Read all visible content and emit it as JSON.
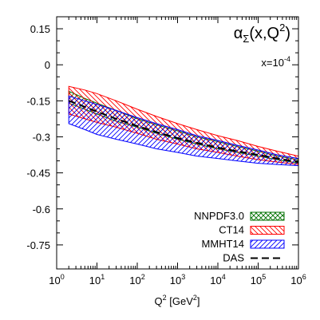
{
  "chart_data": {
    "type": "area",
    "title": "",
    "annotations": {
      "function_symbol": "α",
      "function_subscript": "Σ",
      "function_args": "(x,Q",
      "function_args_sup": "2",
      "function_args_close": ")",
      "x_value_prefix": "x=10",
      "x_value_exp": "-4"
    },
    "xlabel": {
      "prefix": "Q",
      "sup": "2",
      "suffix": " [GeV",
      "sup2": "2",
      "close": "]"
    },
    "ylabel": "",
    "xscale": "log",
    "xlim": [
      1,
      1000000
    ],
    "ylim": [
      -0.85,
      0.2
    ],
    "x_ticks": [
      {
        "base": "10",
        "exp": "0",
        "value": 1
      },
      {
        "base": "10",
        "exp": "1",
        "value": 10
      },
      {
        "base": "10",
        "exp": "2",
        "value": 100
      },
      {
        "base": "10",
        "exp": "3",
        "value": 1000
      },
      {
        "base": "10",
        "exp": "4",
        "value": 10000
      },
      {
        "base": "10",
        "exp": "5",
        "value": 100000
      },
      {
        "base": "10",
        "exp": "6",
        "value": 1000000
      }
    ],
    "y_ticks": [
      {
        "label": "0.15",
        "value": 0.15
      },
      {
        "label": "0",
        "value": 0
      },
      {
        "label": "-0.15",
        "value": -0.15
      },
      {
        "label": "-0.3",
        "value": -0.3
      },
      {
        "label": "-0.45",
        "value": -0.45
      },
      {
        "label": "-0.6",
        "value": -0.6
      },
      {
        "label": "-0.75",
        "value": -0.75
      }
    ],
    "x": [
      2,
      5,
      10,
      30,
      100,
      300,
      1000,
      3000,
      10000,
      30000,
      100000,
      300000,
      1000000
    ],
    "series": [
      {
        "name": "NNPDF3.0",
        "color": "#007000",
        "pattern": "crosshatch",
        "upper": [
          -0.11,
          -0.14,
          -0.16,
          -0.19,
          -0.225,
          -0.25,
          -0.275,
          -0.3,
          -0.32,
          -0.34,
          -0.36,
          -0.38,
          -0.395
        ],
        "lower": [
          -0.16,
          -0.185,
          -0.205,
          -0.235,
          -0.26,
          -0.285,
          -0.31,
          -0.33,
          -0.35,
          -0.365,
          -0.38,
          -0.395,
          -0.41
        ]
      },
      {
        "name": "CT14",
        "color": "#ff0000",
        "pattern": "diag-back",
        "upper": [
          -0.09,
          -0.105,
          -0.12,
          -0.15,
          -0.185,
          -0.215,
          -0.245,
          -0.27,
          -0.295,
          -0.315,
          -0.34,
          -0.36,
          -0.38
        ],
        "lower": [
          -0.205,
          -0.225,
          -0.24,
          -0.26,
          -0.285,
          -0.31,
          -0.33,
          -0.35,
          -0.365,
          -0.38,
          -0.395,
          -0.405,
          -0.415
        ]
      },
      {
        "name": "MMHT14",
        "color": "#0000ff",
        "pattern": "diag-fwd",
        "upper": [
          -0.13,
          -0.15,
          -0.165,
          -0.19,
          -0.22,
          -0.245,
          -0.27,
          -0.295,
          -0.315,
          -0.335,
          -0.355,
          -0.375,
          -0.39
        ],
        "lower": [
          -0.245,
          -0.27,
          -0.29,
          -0.31,
          -0.33,
          -0.35,
          -0.365,
          -0.38,
          -0.39,
          -0.4,
          -0.41,
          -0.415,
          -0.42
        ]
      }
    ],
    "lines": [
      {
        "name": "DAS",
        "color": "#000000",
        "dash": "9,5",
        "values": [
          -0.15,
          -0.175,
          -0.195,
          -0.225,
          -0.255,
          -0.28,
          -0.305,
          -0.325,
          -0.345,
          -0.36,
          -0.375,
          -0.39,
          -0.405
        ]
      }
    ],
    "legend_position": "bottom-right",
    "grid": false
  }
}
